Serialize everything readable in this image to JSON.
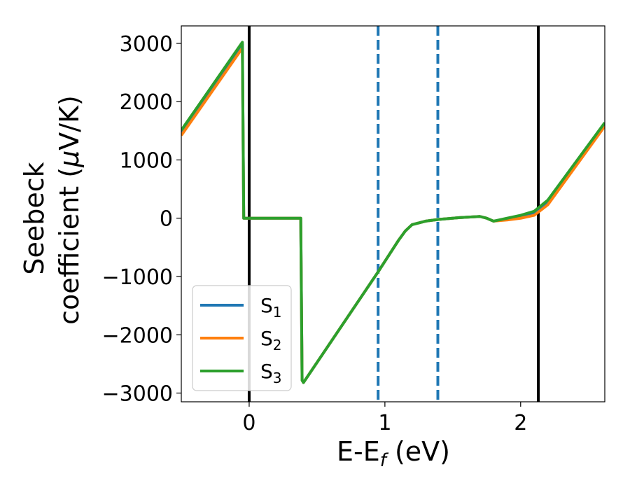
{
  "chart_data": {
    "type": "line",
    "xlabel": "E-E",
    "xlabel_sub": "f",
    "xlabel_unit": " (eV)",
    "ylabel_line1": "Seebeck",
    "ylabel_line2": "coefficient  (",
    "ylabel_mu": "μ",
    "ylabel_tail": "V/K)",
    "xlim": [
      -0.5,
      2.62
    ],
    "ylim": [
      -3150,
      3300
    ],
    "x_ticks": [
      0,
      1,
      2
    ],
    "x_tick_labels": [
      "0",
      "1",
      "2"
    ],
    "y_ticks": [
      3000,
      2000,
      1000,
      0,
      -1000,
      -2000,
      -3000
    ],
    "y_tick_labels": [
      "3000",
      "2000",
      "1000",
      "0",
      "−1000",
      "−2000",
      "−3000"
    ],
    "vertical_lines": [
      {
        "x": 0.0,
        "style": "solid",
        "color": "#000000"
      },
      {
        "x": 2.13,
        "style": "solid",
        "color": "#000000"
      },
      {
        "x": 0.95,
        "style": "dashed",
        "color": "#1f77b4"
      },
      {
        "x": 1.39,
        "style": "dashed",
        "color": "#1f77b4"
      }
    ],
    "legend": {
      "position": "lower-left"
    },
    "series": [
      {
        "name": "S",
        "sub": "1",
        "color": "#1f77b4",
        "x": [
          -0.5,
          -0.05,
          -0.04,
          0.38,
          0.39,
          0.4,
          0.95,
          1.1,
          1.15,
          1.2,
          1.3,
          1.4,
          1.55,
          1.7,
          1.75,
          1.8,
          1.9,
          2.0,
          2.1,
          2.2,
          2.62
        ],
        "y": [
          1480,
          2990,
          0,
          0,
          -2780,
          -2820,
          -920,
          -380,
          -220,
          -110,
          -50,
          -20,
          10,
          30,
          0,
          -50,
          -10,
          30,
          90,
          280,
          1620
        ]
      },
      {
        "name": "S",
        "sub": "2",
        "color": "#ff7f0e",
        "x": [
          -0.5,
          -0.05,
          -0.04,
          0.38,
          0.39,
          0.4,
          0.95,
          1.1,
          1.15,
          1.2,
          1.3,
          1.4,
          1.55,
          1.7,
          1.75,
          1.8,
          1.9,
          2.0,
          2.1,
          2.2,
          2.62
        ],
        "y": [
          1420,
          2920,
          0,
          0,
          -2780,
          -2820,
          -920,
          -380,
          -220,
          -110,
          -50,
          -20,
          10,
          30,
          0,
          -50,
          -30,
          0,
          50,
          230,
          1580
        ]
      },
      {
        "name": "S",
        "sub": "3",
        "color": "#2ca02c",
        "x": [
          -0.5,
          -0.05,
          -0.04,
          0.38,
          0.39,
          0.4,
          0.95,
          1.1,
          1.15,
          1.2,
          1.3,
          1.4,
          1.55,
          1.7,
          1.75,
          1.8,
          1.9,
          2.0,
          2.1,
          2.2,
          2.62
        ],
        "y": [
          1510,
          3020,
          0,
          0,
          -2780,
          -2820,
          -920,
          -380,
          -220,
          -110,
          -50,
          -20,
          10,
          30,
          0,
          -50,
          0,
          50,
          120,
          310,
          1640
        ]
      }
    ]
  }
}
